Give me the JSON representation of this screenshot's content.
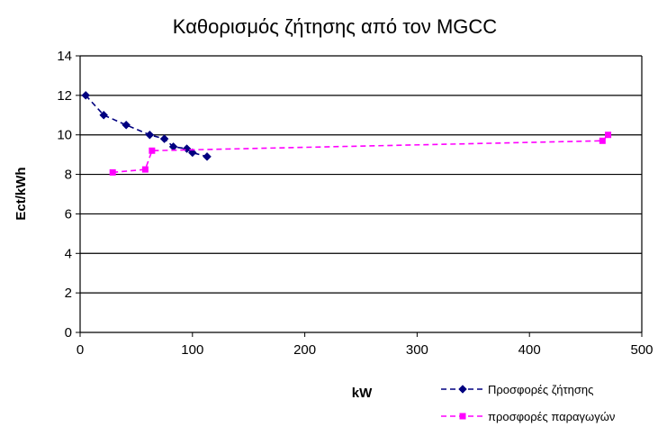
{
  "chart_data": {
    "type": "line",
    "title": "Καθορισμός ζήτησης από τον MGCC",
    "xlabel": "kW",
    "ylabel": "Ect/kWh",
    "xlim": [
      0,
      500
    ],
    "ylim": [
      0,
      14
    ],
    "x_ticks": [
      "0",
      "100",
      "200",
      "300",
      "400",
      "500"
    ],
    "y_ticks": [
      "0",
      "2",
      "4",
      "6",
      "8",
      "10",
      "12",
      "14"
    ],
    "grid": "horizontal",
    "legend_position": "bottom-right",
    "series": [
      {
        "name": "Προσφορές ζήτησης",
        "color": "#000080",
        "line_style": "dashed",
        "marker": "diamond",
        "points": [
          [
            5,
            12.0
          ],
          [
            21,
            11.0
          ],
          [
            41,
            10.5
          ],
          [
            62,
            10.0
          ],
          [
            75,
            9.8
          ],
          [
            83,
            9.4
          ],
          [
            95,
            9.3
          ],
          [
            100,
            9.1
          ],
          [
            113,
            8.9
          ]
        ]
      },
      {
        "name": "προσφορές παραγωγών",
        "color": "#ff00ff",
        "line_style": "dashed",
        "marker": "square",
        "points": [
          [
            29,
            8.1
          ],
          [
            58,
            8.25
          ],
          [
            64,
            9.2
          ],
          [
            465,
            9.7
          ],
          [
            470,
            10.0
          ]
        ]
      }
    ]
  }
}
